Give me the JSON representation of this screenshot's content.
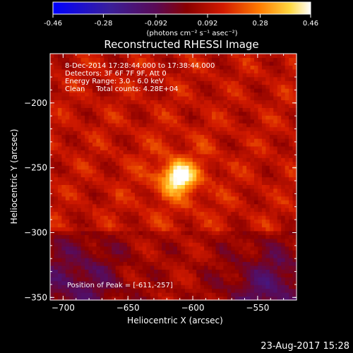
{
  "colorbar": {
    "ticks": [
      "-0.46",
      "-0.28",
      "-0.092",
      "0.092",
      "0.28",
      "0.46"
    ],
    "tick_values": [
      -0.46,
      -0.28,
      -0.092,
      0.092,
      0.28,
      0.46
    ],
    "range": [
      -0.46,
      0.46
    ],
    "unit_label": "(photons cm⁻² s⁻¹ asec⁻²)"
  },
  "chart_data": {
    "type": "heatmap",
    "title": "Reconstructed RHESSI Image",
    "xlabel": "Heliocentric X (arcsec)",
    "ylabel": "Heliocentric Y (arcsec)",
    "xlim": [
      -710,
      -520
    ],
    "ylim": [
      -352,
      -162
    ],
    "xticks": [
      -700,
      -650,
      -600,
      -550
    ],
    "yticks": [
      -200,
      -250,
      -300,
      -350
    ],
    "colormap": "rhessi-heat (blue-purple-red-orange-yellow-white)",
    "peak_value": 0.46,
    "peak_position": [
      -611,
      -257
    ],
    "info_lines": [
      "8-Dec-2014 17:28:44.000 to 17:38:44.000",
      "Detectors: 3F 6F 7F 9F, Att 0",
      "Energy Range: 3.0 - 6.0 keV",
      "Clean     Total counts: 4.28E+04"
    ],
    "peak_label": "Position of Peak = [-611,-257]"
  },
  "timestamp": "23-Aug-2017 15:28"
}
